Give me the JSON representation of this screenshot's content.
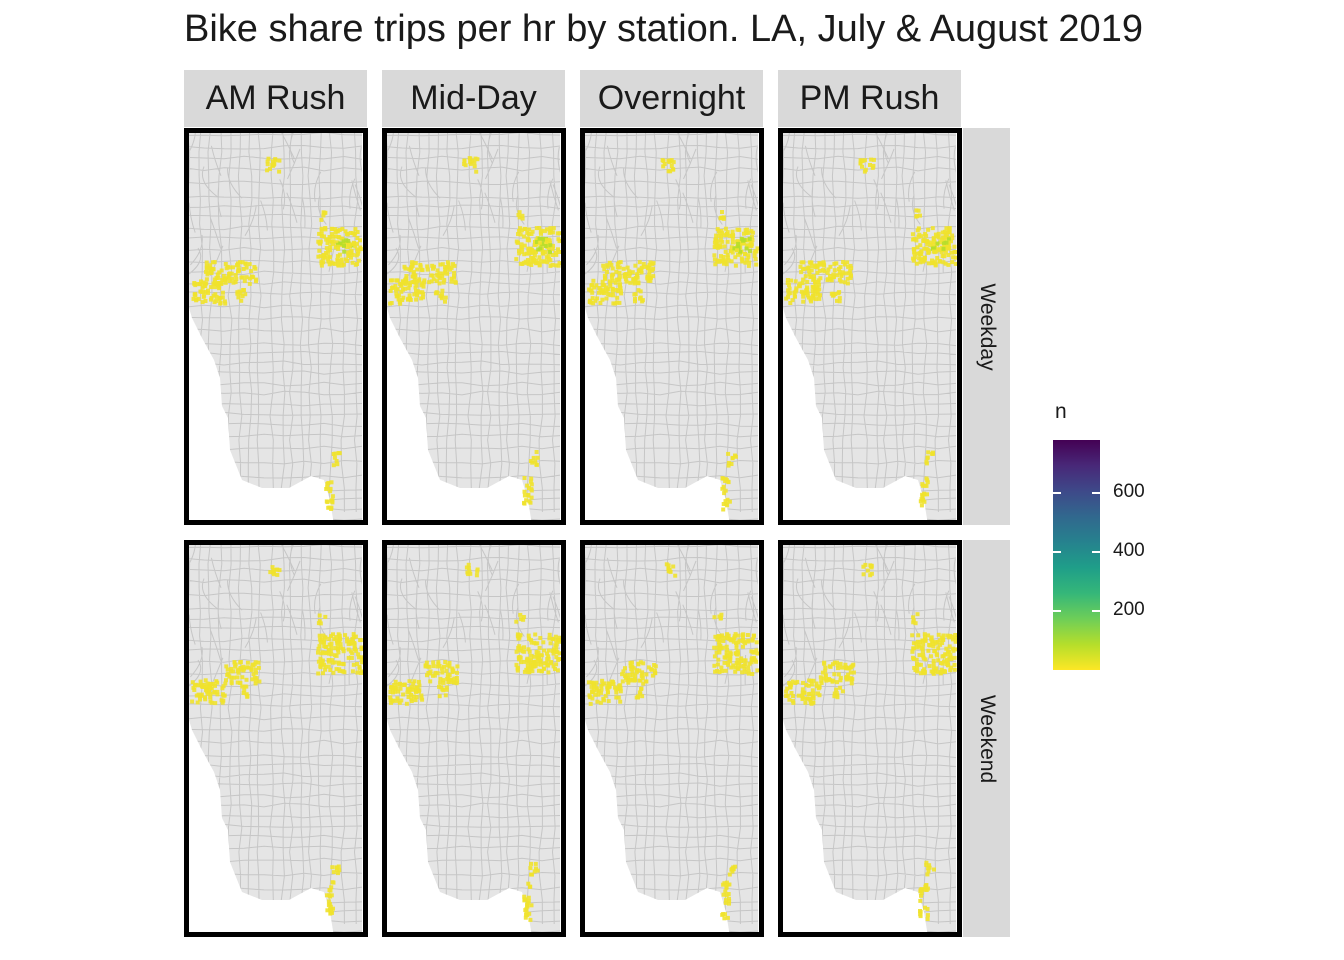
{
  "title": "Bike share trips per hr by station. LA, July & August 2019",
  "columns": [
    "AM Rush",
    "Mid-Day",
    "Overnight",
    "PM Rush"
  ],
  "rows": [
    "Weekday",
    "Weekend"
  ],
  "legend": {
    "title": "n",
    "ticks": [
      {
        "value": 600,
        "label": "600"
      },
      {
        "value": 400,
        "label": "400"
      },
      {
        "value": 200,
        "label": "200"
      }
    ],
    "range": [
      0,
      780
    ],
    "palette": [
      "#fde725",
      "#b5de2b",
      "#6ece58",
      "#35b779",
      "#1f9e89",
      "#26828e",
      "#31688e",
      "#3e4989",
      "#482878",
      "#440154"
    ]
  },
  "colors": {
    "land": "#e5e5e5",
    "roads": "#c6c6c6",
    "strip": "#d9d9d9",
    "frame": "#000000",
    "stations": "#f0e22c"
  }
}
